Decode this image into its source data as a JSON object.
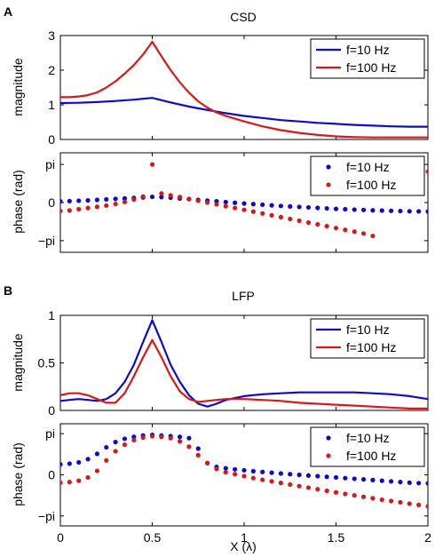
{
  "panels": [
    {
      "letter": "A",
      "title": "CSD",
      "magnitude_ylabel": "magnitude",
      "phase_ylabel": "phase (rad)"
    },
    {
      "letter": "B",
      "title": "LFP",
      "magnitude_ylabel": "magnitude",
      "phase_ylabel": "phase (rad)"
    }
  ],
  "shared_xlabel": "X (λ)",
  "colors": {
    "f10": "#0b0bc8",
    "f100": "#d81818"
  },
  "chart_data": [
    {
      "type": "line",
      "panel": "A",
      "title": "CSD",
      "ylabel": "magnitude",
      "xlim": [
        0,
        2
      ],
      "ylim": [
        0,
        3
      ],
      "yticks": [
        0,
        1,
        2,
        3
      ],
      "ytick_labels": [
        "0",
        "1",
        "2",
        "3"
      ],
      "xticks": [
        0,
        0.5,
        1,
        1.5,
        2
      ],
      "xtick_labels": [],
      "legend_position": "top-right",
      "series": [
        {
          "name": "f=10 Hz",
          "color": "#0b0bc8",
          "x": [
            0,
            0.1,
            0.2,
            0.3,
            0.4,
            0.5,
            0.6,
            0.7,
            0.8,
            0.9,
            1.0,
            1.1,
            1.2,
            1.3,
            1.4,
            1.5,
            1.6,
            1.7,
            1.8,
            1.9,
            2.0
          ],
          "y": [
            1.05,
            1.06,
            1.08,
            1.11,
            1.15,
            1.2,
            1.07,
            0.95,
            0.85,
            0.76,
            0.68,
            0.62,
            0.56,
            0.52,
            0.48,
            0.45,
            0.42,
            0.4,
            0.38,
            0.37,
            0.37
          ]
        },
        {
          "name": "f=100 Hz",
          "color": "#d81818",
          "x": [
            0,
            0.05,
            0.1,
            0.15,
            0.2,
            0.25,
            0.3,
            0.35,
            0.4,
            0.45,
            0.5,
            0.55,
            0.6,
            0.65,
            0.7,
            0.75,
            0.8,
            0.85,
            0.9,
            0.95,
            1.0,
            1.1,
            1.2,
            1.3,
            1.4,
            1.5,
            1.6,
            1.7,
            1.8,
            1.9,
            2.0
          ],
          "y": [
            1.22,
            1.22,
            1.24,
            1.28,
            1.36,
            1.5,
            1.68,
            1.9,
            2.15,
            2.45,
            2.82,
            2.4,
            2.0,
            1.65,
            1.35,
            1.1,
            0.92,
            0.78,
            0.68,
            0.6,
            0.52,
            0.38,
            0.27,
            0.19,
            0.13,
            0.09,
            0.07,
            0.06,
            0.06,
            0.06,
            0.06
          ]
        }
      ]
    },
    {
      "type": "scatter",
      "panel": "A",
      "ylabel": "phase (rad)",
      "xlim": [
        0,
        2
      ],
      "ylim": [
        -4.1,
        4.1
      ],
      "yticks": [
        -3.14159,
        0,
        3.14159
      ],
      "ytick_labels": [
        "−pi",
        "0",
        "pi"
      ],
      "xticks": [
        0,
        0.5,
        1,
        1.5,
        2
      ],
      "xtick_labels": [],
      "legend_position": "top-right",
      "series": [
        {
          "name": "f=10 Hz",
          "color": "#0b0bc8",
          "x": [
            0,
            0.05,
            0.1,
            0.15,
            0.2,
            0.25,
            0.3,
            0.35,
            0.4,
            0.45,
            0.5,
            0.55,
            0.6,
            0.65,
            0.7,
            0.75,
            0.8,
            0.85,
            0.9,
            0.95,
            1.0,
            1.05,
            1.1,
            1.15,
            1.2,
            1.25,
            1.3,
            1.35,
            1.4,
            1.45,
            1.5,
            1.55,
            1.6,
            1.65,
            1.7,
            1.75,
            1.8,
            1.85,
            1.9,
            1.95,
            2.0
          ],
          "y": [
            0.1,
            0.12,
            0.15,
            0.18,
            0.22,
            0.26,
            0.3,
            0.34,
            0.38,
            0.42,
            0.47,
            0.45,
            0.4,
            0.34,
            0.28,
            0.22,
            0.16,
            0.1,
            0.04,
            -0.02,
            -0.08,
            -0.13,
            -0.18,
            -0.23,
            -0.28,
            -0.32,
            -0.36,
            -0.4,
            -0.44,
            -0.48,
            -0.52,
            -0.55,
            -0.58,
            -0.61,
            -0.64,
            -0.66,
            -0.68,
            -0.7,
            -0.72,
            -0.73,
            -0.74
          ]
        },
        {
          "name": "f=100 Hz",
          "color": "#d81818",
          "x": [
            0,
            0.05,
            0.1,
            0.15,
            0.2,
            0.25,
            0.3,
            0.35,
            0.4,
            0.45,
            0.5,
            0.55,
            0.6,
            0.65,
            0.7,
            0.75,
            0.8,
            0.85,
            0.9,
            0.95,
            1.0,
            1.05,
            1.1,
            1.15,
            1.2,
            1.25,
            1.3,
            1.35,
            1.4,
            1.45,
            1.5,
            1.55,
            1.6,
            1.65,
            1.7,
            2.0
          ],
          "y": [
            -0.7,
            -0.65,
            -0.55,
            -0.45,
            -0.35,
            -0.25,
            -0.12,
            0.05,
            0.25,
            0.5,
            3.14,
            0.75,
            0.6,
            0.45,
            0.3,
            0.15,
            0.0,
            -0.15,
            -0.3,
            -0.45,
            -0.6,
            -0.75,
            -0.9,
            -1.05,
            -1.2,
            -1.35,
            -1.5,
            -1.65,
            -1.8,
            -1.95,
            -2.1,
            -2.25,
            -2.4,
            -2.55,
            -2.75,
            2.55
          ]
        }
      ]
    },
    {
      "type": "line",
      "panel": "B",
      "title": "LFP",
      "ylabel": "magnitude",
      "xlim": [
        0,
        2
      ],
      "ylim": [
        0,
        1
      ],
      "yticks": [
        0,
        0.5,
        1
      ],
      "ytick_labels": [
        "0",
        "0.5",
        "1"
      ],
      "xticks": [
        0,
        0.5,
        1,
        1.5,
        2
      ],
      "xtick_labels": [],
      "legend_position": "top-right",
      "series": [
        {
          "name": "f=10 Hz",
          "color": "#0b0bc8",
          "x": [
            0,
            0.05,
            0.1,
            0.15,
            0.2,
            0.25,
            0.3,
            0.35,
            0.4,
            0.45,
            0.5,
            0.55,
            0.6,
            0.65,
            0.7,
            0.75,
            0.8,
            0.85,
            0.9,
            1.0,
            1.1,
            1.2,
            1.3,
            1.4,
            1.5,
            1.6,
            1.7,
            1.8,
            1.9,
            2.0
          ],
          "y": [
            0.1,
            0.11,
            0.12,
            0.11,
            0.1,
            0.12,
            0.18,
            0.3,
            0.48,
            0.72,
            0.95,
            0.72,
            0.48,
            0.3,
            0.16,
            0.07,
            0.04,
            0.07,
            0.11,
            0.15,
            0.17,
            0.18,
            0.19,
            0.19,
            0.19,
            0.19,
            0.18,
            0.17,
            0.15,
            0.12
          ]
        },
        {
          "name": "f=100 Hz",
          "color": "#d81818",
          "x": [
            0,
            0.05,
            0.1,
            0.15,
            0.2,
            0.25,
            0.3,
            0.35,
            0.4,
            0.45,
            0.5,
            0.55,
            0.6,
            0.65,
            0.7,
            0.75,
            0.8,
            0.85,
            0.9,
            1.0,
            1.1,
            1.2,
            1.3,
            1.4,
            1.5,
            1.6,
            1.7,
            1.8,
            1.9,
            2.0
          ],
          "y": [
            0.16,
            0.18,
            0.18,
            0.16,
            0.12,
            0.08,
            0.08,
            0.18,
            0.36,
            0.56,
            0.74,
            0.56,
            0.36,
            0.2,
            0.12,
            0.09,
            0.1,
            0.11,
            0.12,
            0.12,
            0.11,
            0.1,
            0.08,
            0.07,
            0.06,
            0.05,
            0.04,
            0.03,
            0.02,
            0.02
          ]
        }
      ]
    },
    {
      "type": "scatter",
      "panel": "B",
      "ylabel": "phase (rad)",
      "xlabel": "X (λ)",
      "xlim": [
        0,
        2
      ],
      "ylim": [
        -3.9,
        3.9
      ],
      "yticks": [
        -3.14159,
        0,
        3.14159
      ],
      "ytick_labels": [
        "−pi",
        "0",
        "pi"
      ],
      "xticks": [
        0,
        0.5,
        1,
        1.5,
        2
      ],
      "xtick_labels": [
        "0",
        "0.5",
        "1",
        "1.5",
        "2"
      ],
      "legend_position": "top-right",
      "series": [
        {
          "name": "f=10 Hz",
          "color": "#0b0bc8",
          "x": [
            0,
            0.05,
            0.1,
            0.15,
            0.2,
            0.25,
            0.3,
            0.35,
            0.4,
            0.45,
            0.5,
            0.55,
            0.6,
            0.65,
            0.7,
            0.75,
            0.8,
            0.85,
            0.9,
            0.95,
            1.0,
            1.05,
            1.1,
            1.15,
            1.2,
            1.25,
            1.3,
            1.35,
            1.4,
            1.45,
            1.5,
            1.55,
            1.6,
            1.65,
            1.7,
            1.75,
            1.8,
            1.85,
            1.9,
            1.95,
            2.0
          ],
          "y": [
            0.8,
            0.85,
            0.95,
            1.2,
            1.6,
            2.1,
            2.5,
            2.75,
            2.9,
            3.0,
            3.05,
            3.0,
            2.95,
            2.9,
            2.8,
            2.0,
            0.9,
            0.6,
            0.5,
            0.42,
            0.35,
            0.28,
            0.22,
            0.16,
            0.1,
            0.05,
            0.0,
            -0.05,
            -0.1,
            -0.15,
            -0.2,
            -0.25,
            -0.3,
            -0.35,
            -0.4,
            -0.45,
            -0.5,
            -0.55,
            -0.6,
            -0.63,
            -0.65
          ]
        },
        {
          "name": "f=100 Hz",
          "color": "#d81818",
          "x": [
            0,
            0.05,
            0.1,
            0.15,
            0.2,
            0.25,
            0.3,
            0.35,
            0.4,
            0.45,
            0.5,
            0.55,
            0.6,
            0.65,
            0.7,
            0.75,
            0.8,
            0.85,
            0.9,
            0.95,
            1.0,
            1.05,
            1.1,
            1.15,
            1.2,
            1.25,
            1.3,
            1.35,
            1.4,
            1.45,
            1.5,
            1.55,
            1.6,
            1.65,
            1.7,
            1.75,
            1.8,
            1.85,
            1.9,
            1.95,
            2.0
          ],
          "y": [
            -0.6,
            -0.55,
            -0.45,
            -0.2,
            0.3,
            1.1,
            1.8,
            2.3,
            2.65,
            2.85,
            2.95,
            2.9,
            2.8,
            2.55,
            2.15,
            1.5,
            0.9,
            0.45,
            0.2,
            0.05,
            -0.1,
            -0.25,
            -0.38,
            -0.5,
            -0.62,
            -0.74,
            -0.86,
            -0.98,
            -1.1,
            -1.22,
            -1.34,
            -1.46,
            -1.57,
            -1.68,
            -1.79,
            -1.9,
            -2.0,
            -2.1,
            -2.2,
            -2.3,
            -2.4
          ]
        }
      ]
    }
  ]
}
